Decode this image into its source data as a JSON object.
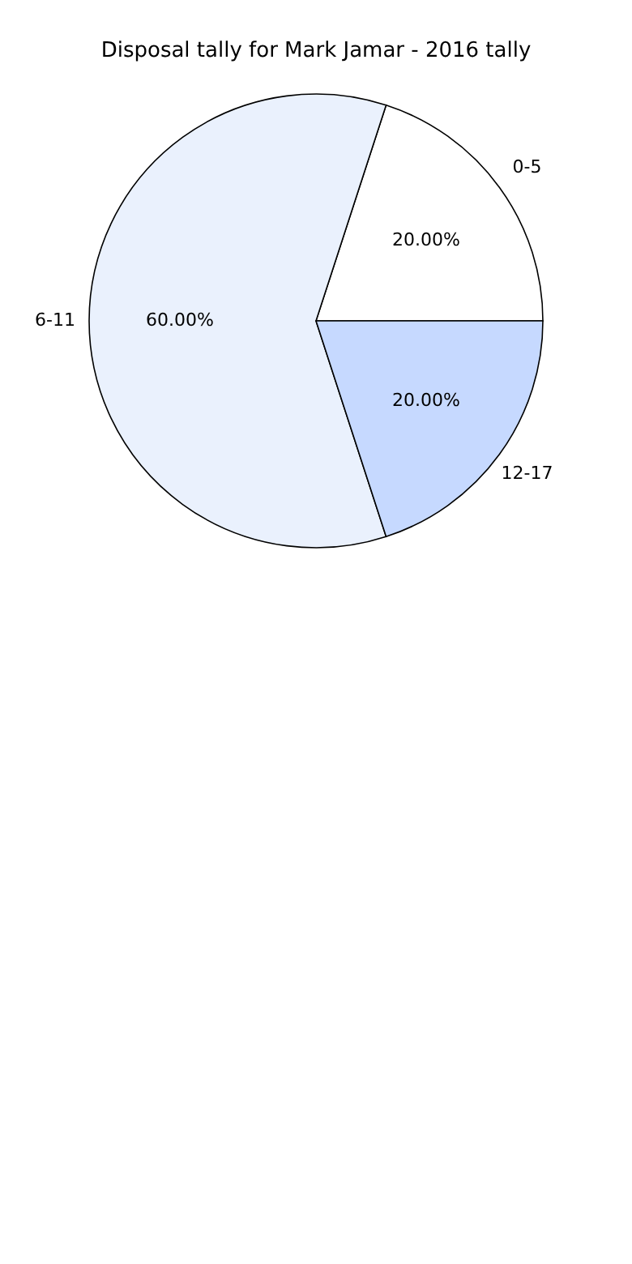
{
  "chart_data": {
    "type": "pie",
    "title": "Disposal tally for Mark Jamar - 2016 tally",
    "categories": [
      "0-5",
      "6-11",
      "12-17"
    ],
    "values": [
      20,
      60,
      20
    ],
    "colors": [
      "#ffffff",
      "#eaf1fd",
      "#c6d9ff"
    ],
    "value_labels": [
      "20.00%",
      "60.00%",
      "20.00%"
    ],
    "legend": false
  }
}
